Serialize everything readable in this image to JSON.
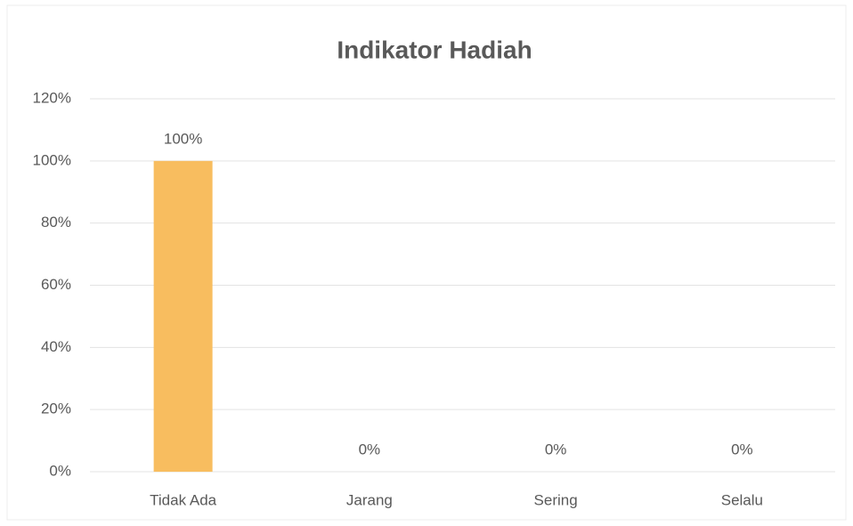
{
  "chart_data": {
    "type": "bar",
    "title": "Indikator Hadiah",
    "categories": [
      "Tidak Ada",
      "Jarang",
      "Sering",
      "Selalu"
    ],
    "values": [
      100,
      0,
      0,
      0
    ],
    "value_labels": [
      "100%",
      "0%",
      "0%",
      "0%"
    ],
    "color": "#f8bd5f",
    "ylim": [
      0,
      120
    ],
    "yticks": [
      {
        "value": 0,
        "label": "0%"
      },
      {
        "value": 20,
        "label": "20%"
      },
      {
        "value": 40,
        "label": "40%"
      },
      {
        "value": 60,
        "label": "60%"
      },
      {
        "value": 80,
        "label": "80%"
      },
      {
        "value": 100,
        "label": "100%"
      },
      {
        "value": 120,
        "label": "120%"
      }
    ],
    "grid": true
  }
}
